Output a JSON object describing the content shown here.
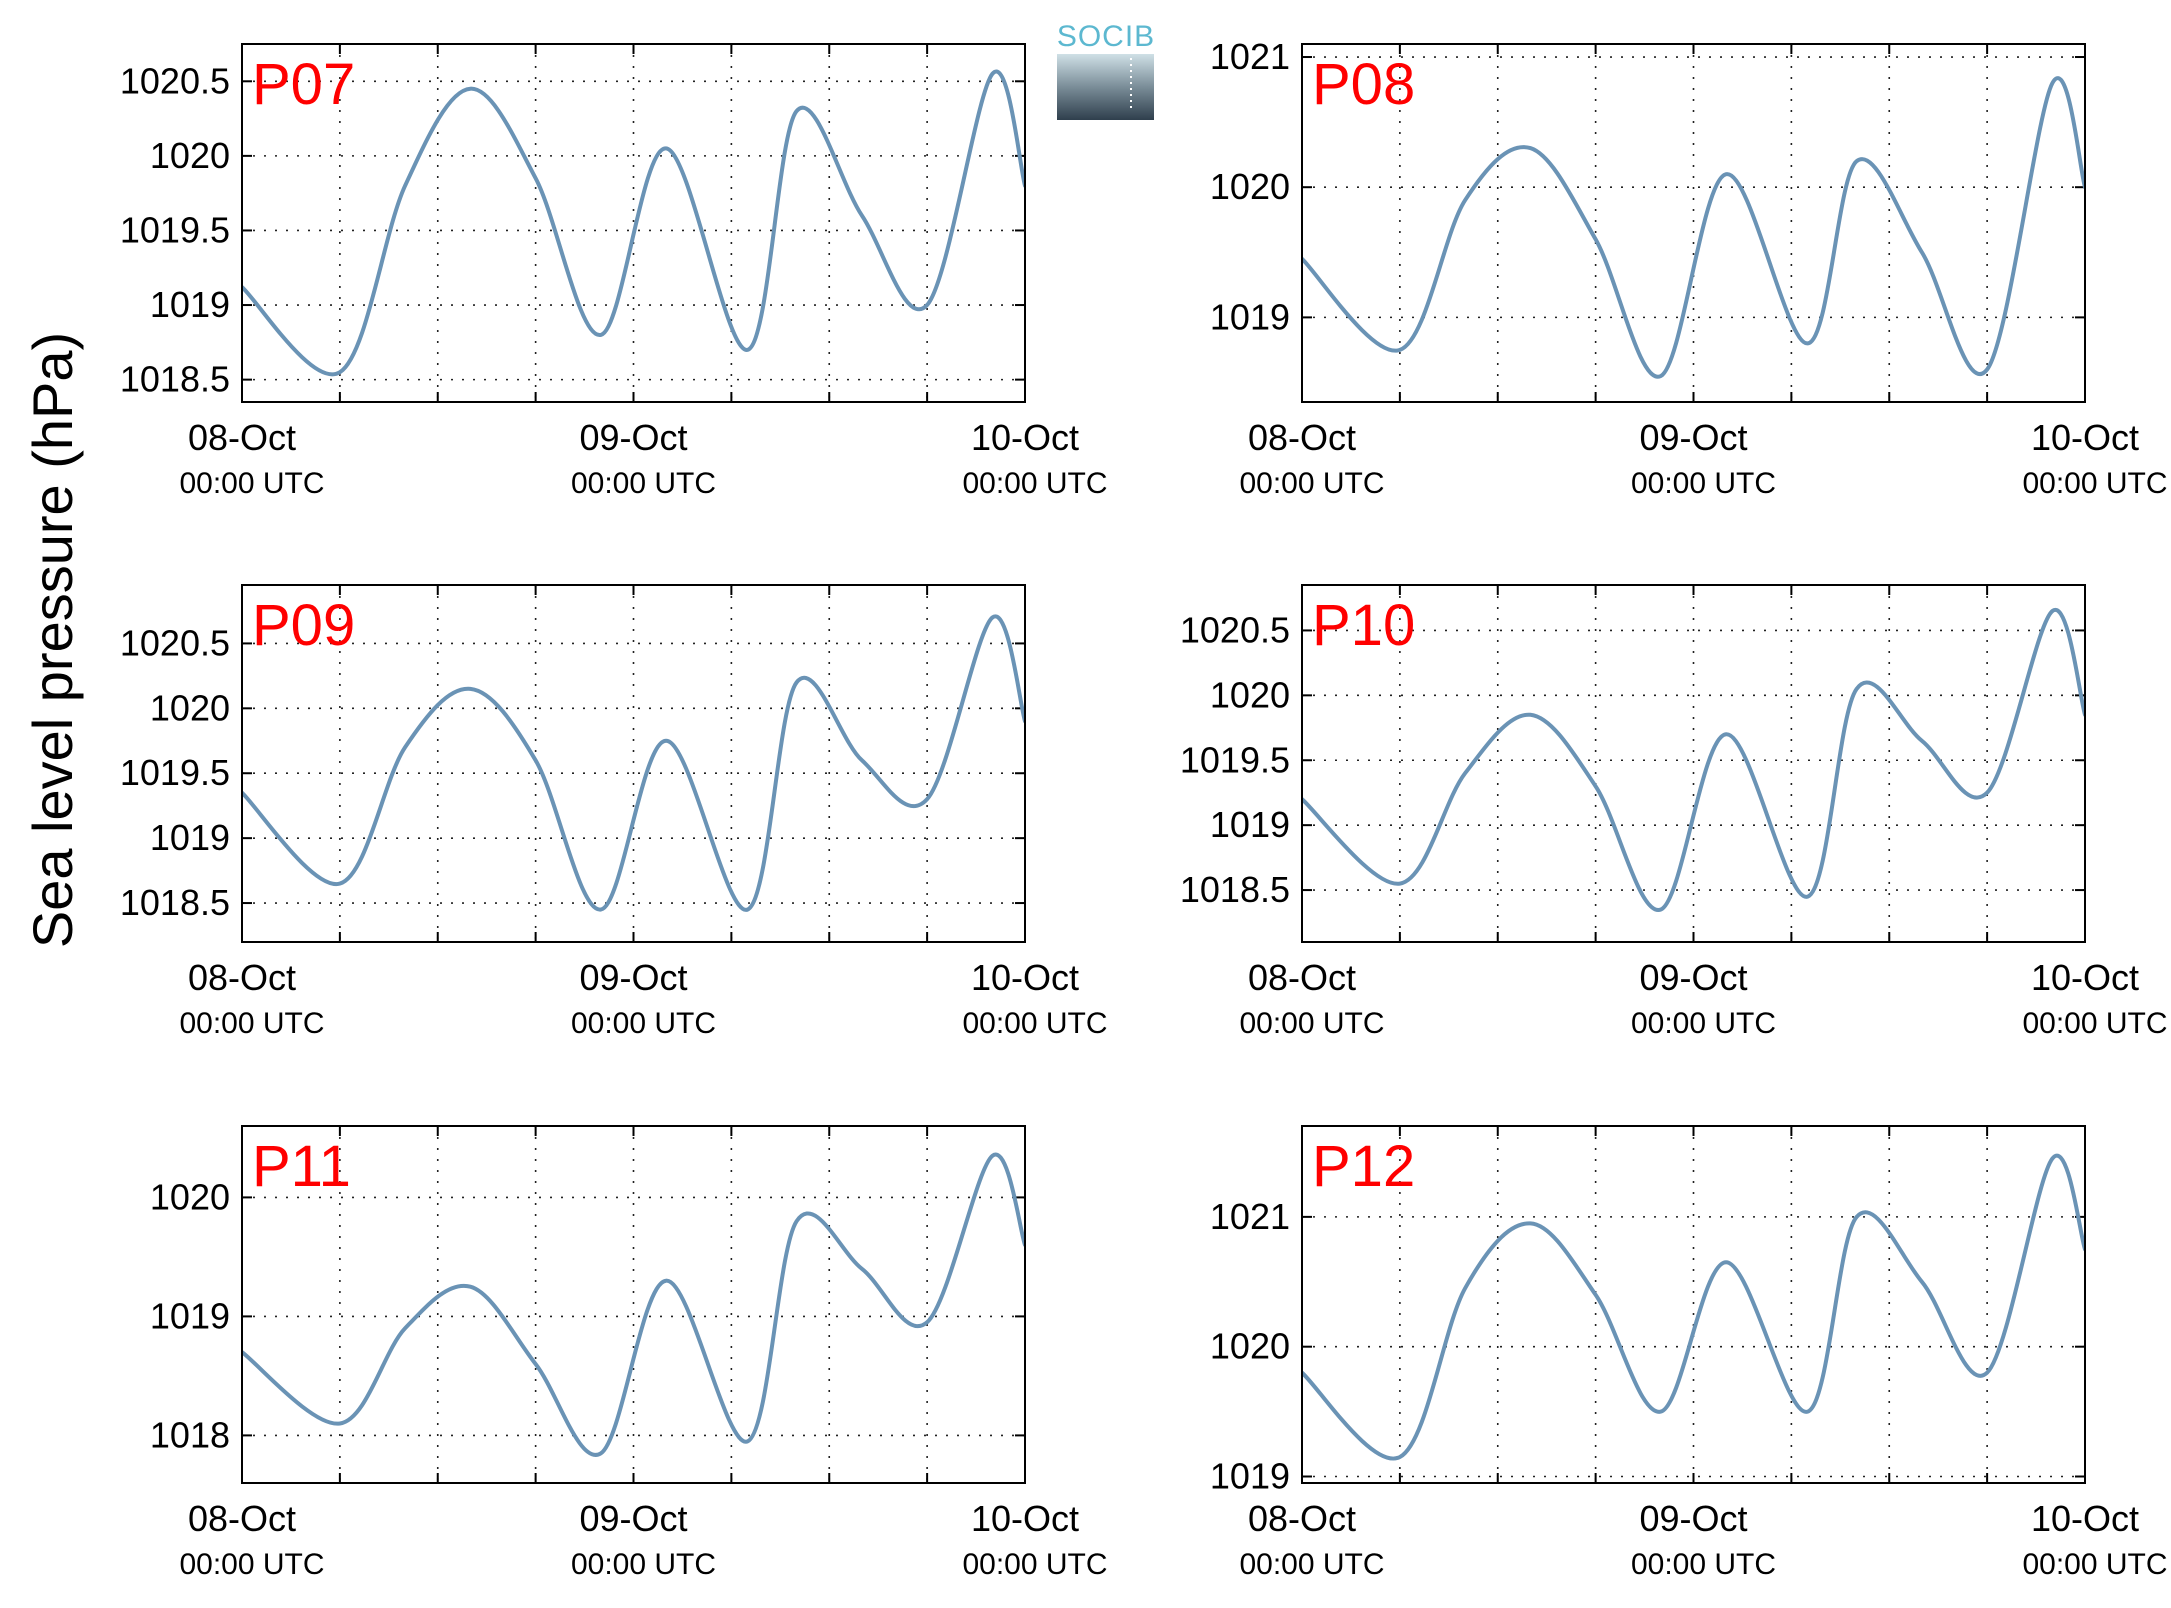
{
  "figure": {
    "ylabel": "Sea level pressure (hPa)",
    "logo_text": "SOCIB",
    "line_color": "#6a93b5",
    "label_color": "#ff0000"
  },
  "chart_data": [
    {
      "type": "line",
      "panel_label": "P07",
      "x": [
        "08-Oct 00:00",
        "08-Oct 06:00",
        "08-Oct 10:00",
        "08-Oct 14:00",
        "08-Oct 18:00",
        "08-Oct 22:00",
        "09-Oct 02:00",
        "09-Oct 07:00",
        "09-Oct 10:00",
        "09-Oct 14:00",
        "09-Oct 18:00",
        "09-Oct 22:00",
        "10-Oct 00:00"
      ],
      "xtick_dates": [
        "08-Oct",
        "09-Oct",
        "10-Oct"
      ],
      "xtick_times": [
        "00:00 UTC",
        "00:00 UTC",
        "00:00 UTC"
      ],
      "series": [
        {
          "values": [
            1019.12,
            1018.55,
            1019.8,
            1020.45,
            1019.85,
            1018.8,
            1020.05,
            1018.7,
            1020.3,
            1019.6,
            1019.0,
            1020.55,
            1019.8
          ]
        }
      ],
      "yticks": [
        "1018.5",
        "1019",
        "1019.5",
        "1020",
        "1020.5"
      ],
      "ylim": [
        1018.35,
        1020.75
      ],
      "xlim": [
        "08-Oct 00:00",
        "10-Oct 00:00"
      ],
      "grid": true
    },
    {
      "type": "line",
      "panel_label": "P08",
      "x": [
        "08-Oct 00:00",
        "08-Oct 06:00",
        "08-Oct 10:00",
        "08-Oct 14:00",
        "08-Oct 18:00",
        "08-Oct 22:00",
        "09-Oct 02:00",
        "09-Oct 07:00",
        "09-Oct 10:00",
        "09-Oct 14:00",
        "09-Oct 18:00",
        "09-Oct 22:00",
        "10-Oct 00:00"
      ],
      "xtick_dates": [
        "08-Oct",
        "09-Oct",
        "10-Oct"
      ],
      "xtick_times": [
        "00:00 UTC",
        "00:00 UTC",
        "00:00 UTC"
      ],
      "series": [
        {
          "values": [
            1019.45,
            1018.75,
            1019.9,
            1020.3,
            1019.6,
            1018.55,
            1020.1,
            1018.8,
            1020.2,
            1019.5,
            1018.6,
            1020.8,
            1020.0
          ]
        }
      ],
      "yticks": [
        "1019",
        "1020",
        "1021"
      ],
      "ylim": [
        1018.35,
        1021.1
      ],
      "xlim": [
        "08-Oct 00:00",
        "10-Oct 00:00"
      ],
      "grid": true
    },
    {
      "type": "line",
      "panel_label": "P09",
      "x": [
        "08-Oct 00:00",
        "08-Oct 06:00",
        "08-Oct 10:00",
        "08-Oct 14:00",
        "08-Oct 18:00",
        "08-Oct 22:00",
        "09-Oct 02:00",
        "09-Oct 07:00",
        "09-Oct 10:00",
        "09-Oct 14:00",
        "09-Oct 18:00",
        "09-Oct 22:00",
        "10-Oct 00:00"
      ],
      "xtick_dates": [
        "08-Oct",
        "09-Oct",
        "10-Oct"
      ],
      "xtick_times": [
        "00:00 UTC",
        "00:00 UTC",
        "00:00 UTC"
      ],
      "series": [
        {
          "values": [
            1019.35,
            1018.65,
            1019.7,
            1020.15,
            1019.6,
            1018.45,
            1019.75,
            1018.45,
            1020.2,
            1019.6,
            1019.3,
            1020.7,
            1019.9
          ]
        }
      ],
      "yticks": [
        "1018.5",
        "1019",
        "1019.5",
        "1020",
        "1020.5"
      ],
      "ylim": [
        1018.2,
        1020.95
      ],
      "xlim": [
        "08-Oct 00:00",
        "10-Oct 00:00"
      ],
      "grid": true
    },
    {
      "type": "line",
      "panel_label": "P10",
      "x": [
        "08-Oct 00:00",
        "08-Oct 06:00",
        "08-Oct 10:00",
        "08-Oct 14:00",
        "08-Oct 18:00",
        "08-Oct 22:00",
        "09-Oct 02:00",
        "09-Oct 07:00",
        "09-Oct 10:00",
        "09-Oct 14:00",
        "09-Oct 18:00",
        "09-Oct 22:00",
        "10-Oct 00:00"
      ],
      "xtick_dates": [
        "08-Oct",
        "09-Oct",
        "10-Oct"
      ],
      "xtick_times": [
        "00:00 UTC",
        "00:00 UTC",
        "00:00 UTC"
      ],
      "series": [
        {
          "values": [
            1019.2,
            1018.55,
            1019.4,
            1019.85,
            1019.3,
            1018.35,
            1019.7,
            1018.45,
            1020.05,
            1019.65,
            1019.25,
            1020.65,
            1019.85
          ]
        }
      ],
      "yticks": [
        "1018.5",
        "1019",
        "1019.5",
        "1020",
        "1020.5"
      ],
      "ylim": [
        1018.1,
        1020.85
      ],
      "xlim": [
        "08-Oct 00:00",
        "10-Oct 00:00"
      ],
      "grid": true
    },
    {
      "type": "line",
      "panel_label": "P11",
      "x": [
        "08-Oct 00:00",
        "08-Oct 06:00",
        "08-Oct 10:00",
        "08-Oct 14:00",
        "08-Oct 18:00",
        "08-Oct 22:00",
        "09-Oct 02:00",
        "09-Oct 07:00",
        "09-Oct 10:00",
        "09-Oct 14:00",
        "09-Oct 18:00",
        "09-Oct 22:00",
        "10-Oct 00:00"
      ],
      "xtick_dates": [
        "08-Oct",
        "09-Oct",
        "10-Oct"
      ],
      "xtick_times": [
        "00:00 UTC",
        "00:00 UTC",
        "00:00 UTC"
      ],
      "series": [
        {
          "values": [
            1018.7,
            1018.1,
            1018.9,
            1019.25,
            1018.6,
            1017.85,
            1019.3,
            1017.95,
            1019.8,
            1019.4,
            1018.95,
            1020.35,
            1019.6
          ]
        }
      ],
      "yticks": [
        "1018",
        "1019",
        "1020"
      ],
      "ylim": [
        1017.6,
        1020.6
      ],
      "xlim": [
        "08-Oct 00:00",
        "10-Oct 00:00"
      ],
      "grid": true
    },
    {
      "type": "line",
      "panel_label": "P12",
      "x": [
        "08-Oct 00:00",
        "08-Oct 06:00",
        "08-Oct 10:00",
        "08-Oct 14:00",
        "08-Oct 18:00",
        "08-Oct 22:00",
        "09-Oct 02:00",
        "09-Oct 07:00",
        "09-Oct 10:00",
        "09-Oct 14:00",
        "09-Oct 18:00",
        "09-Oct 22:00",
        "10-Oct 00:00"
      ],
      "xtick_dates": [
        "08-Oct",
        "09-Oct",
        "10-Oct"
      ],
      "xtick_times": [
        "00:00 UTC",
        "00:00 UTC",
        "00:00 UTC"
      ],
      "series": [
        {
          "values": [
            1019.8,
            1019.15,
            1020.45,
            1020.95,
            1020.4,
            1019.5,
            1020.65,
            1019.5,
            1021.0,
            1020.5,
            1019.8,
            1021.45,
            1020.75
          ]
        }
      ],
      "yticks": [
        "1019",
        "1020",
        "1021"
      ],
      "ylim": [
        1018.95,
        1021.7
      ],
      "xlim": [
        "08-Oct 00:00",
        "10-Oct 00:00"
      ],
      "grid": true
    }
  ]
}
